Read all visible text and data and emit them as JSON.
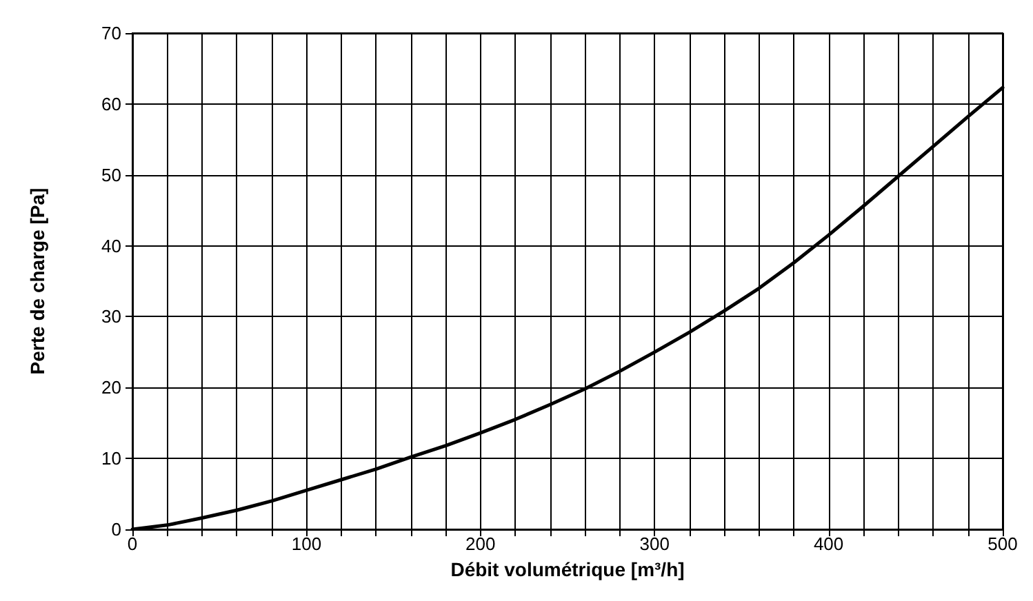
{
  "chart_data": {
    "type": "line",
    "xlabel": "Débit volumétrique [m³/h]",
    "ylabel": "Perte de charge [Pa]",
    "x": [
      0,
      20,
      40,
      60,
      80,
      100,
      120,
      140,
      160,
      180,
      200,
      220,
      240,
      260,
      280,
      300,
      320,
      340,
      360,
      380,
      400,
      420,
      440,
      460,
      480,
      500
    ],
    "series": [
      {
        "color": "#000000",
        "values": [
          0,
          0.6,
          1.6,
          2.7,
          4.0,
          5.5,
          7.0,
          8.5,
          10.2,
          11.8,
          13.6,
          15.5,
          17.6,
          19.8,
          22.3,
          25.0,
          27.8,
          30.8,
          34.0,
          37.6,
          41.5,
          45.6,
          49.8,
          54.0,
          58.2,
          62.3
        ]
      }
    ],
    "xlim": [
      0,
      500
    ],
    "xticks": [
      0,
      {
        "value": 20,
        "label": null
      },
      {
        "value": 40,
        "label": null
      },
      {
        "value": 60,
        "label": null
      },
      {
        "value": 80,
        "label": null
      },
      100,
      {
        "value": 120,
        "label": null
      },
      {
        "value": 140,
        "label": null
      },
      {
        "value": 160,
        "label": null
      },
      {
        "value": 180,
        "label": null
      },
      200,
      {
        "value": 220,
        "label": null
      },
      {
        "value": 240,
        "label": null
      },
      {
        "value": 260,
        "label": null
      },
      {
        "value": 280,
        "label": null
      },
      300,
      {
        "value": 320,
        "label": null
      },
      {
        "value": 340,
        "label": null
      },
      {
        "value": 360,
        "label": null
      },
      {
        "value": 380,
        "label": null
      },
      400,
      {
        "value": 420,
        "label": null
      },
      {
        "value": 440,
        "label": null
      },
      {
        "value": 460,
        "label": null
      },
      {
        "value": 480,
        "label": null
      },
      500
    ],
    "ylim": [
      0,
      70
    ],
    "yticks": [
      0,
      10,
      20,
      30,
      40,
      50,
      60,
      70
    ],
    "grid": true,
    "marker": "none",
    "line_style": "solid"
  }
}
